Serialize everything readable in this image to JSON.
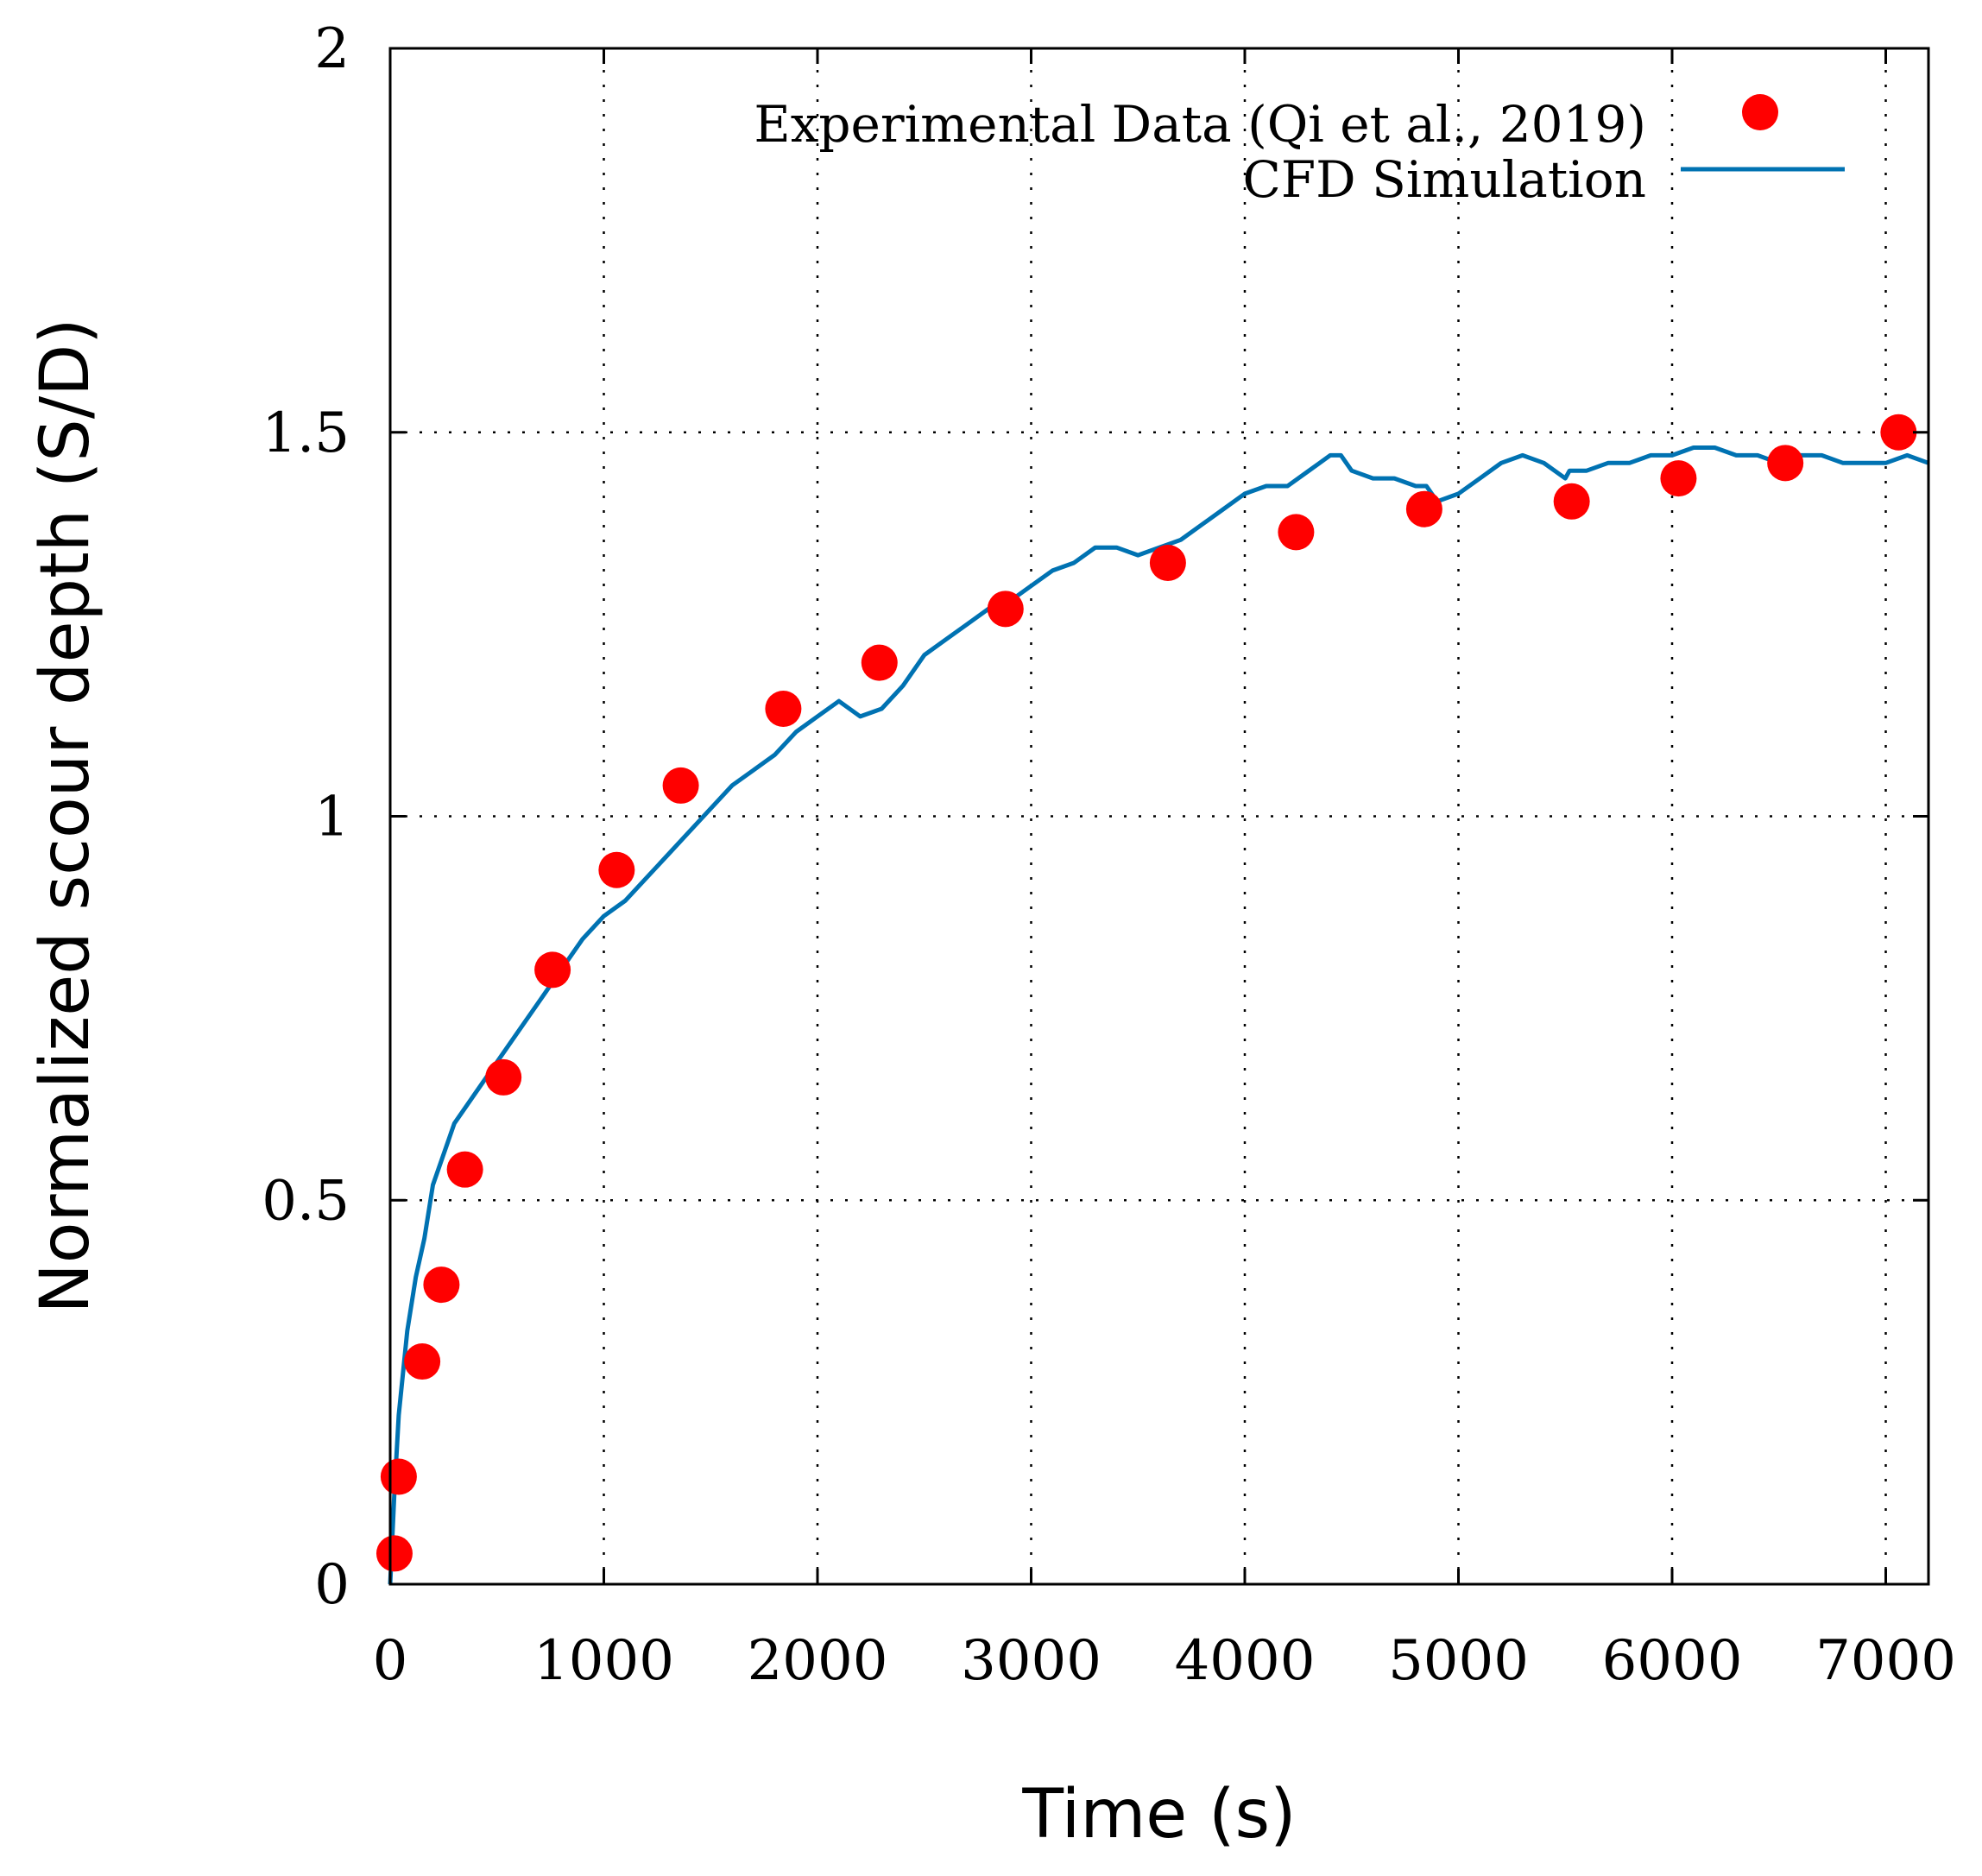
{
  "chart_data": {
    "type": "line",
    "title": "",
    "xlabel": "Time (s)",
    "ylabel": "Normalized scour depth (S/D)",
    "xlim": [
      0,
      7200
    ],
    "ylim": [
      0,
      2
    ],
    "x_ticks": [
      "0",
      "1000",
      "2000",
      "3000",
      "4000",
      "5000",
      "6000",
      "7000"
    ],
    "y_ticks": [
      "0",
      "0.5",
      "1",
      "1.5",
      "2"
    ],
    "x_tick_values": [
      0,
      1000,
      2000,
      3000,
      4000,
      5000,
      6000,
      7000
    ],
    "y_tick_values": [
      0,
      0.5,
      1,
      1.5,
      2
    ],
    "grid": true,
    "legend_position": "top-right",
    "series": [
      {
        "name": "Experimental Data (Qi et al., 2019)",
        "kind": "scatter",
        "color": "#ff0000",
        "x": [
          20,
          40,
          150,
          240,
          350,
          530,
          760,
          1060,
          1360,
          1840,
          2290,
          2880,
          3640,
          4240,
          4840,
          5530,
          6030,
          6530,
          7060
        ],
        "y": [
          0.04,
          0.14,
          0.29,
          0.39,
          0.54,
          0.66,
          0.8,
          0.93,
          1.04,
          1.14,
          1.2,
          1.27,
          1.33,
          1.37,
          1.4,
          1.41,
          1.44,
          1.46,
          1.5
        ]
      },
      {
        "name": "CFD Simulation",
        "kind": "line",
        "color": "#0072b2",
        "x": [
          0,
          20,
          40,
          80,
          120,
          160,
          200,
          250,
          300,
          400,
          500,
          600,
          700,
          800,
          900,
          1000,
          1100,
          1200,
          1300,
          1400,
          1500,
          1600,
          1700,
          1800,
          1900,
          2000,
          2100,
          2200,
          2300,
          2400,
          2500,
          2600,
          2700,
          2800,
          2900,
          3000,
          3100,
          3200,
          3300,
          3400,
          3500,
          3600,
          3700,
          3800,
          3900,
          4000,
          4100,
          4200,
          4300,
          4400,
          4450,
          4500,
          4600,
          4700,
          4800,
          4850,
          4900,
          5000,
          5100,
          5200,
          5300,
          5400,
          5500,
          5520,
          5600,
          5700,
          5800,
          5900,
          6000,
          6100,
          6200,
          6300,
          6400,
          6500,
          6600,
          6700,
          6800,
          6900,
          7000,
          7100,
          7200
        ],
        "y": [
          0.0,
          0.12,
          0.22,
          0.33,
          0.4,
          0.45,
          0.52,
          0.56,
          0.6,
          0.64,
          0.68,
          0.72,
          0.76,
          0.8,
          0.84,
          0.87,
          0.89,
          0.92,
          0.95,
          0.98,
          1.01,
          1.04,
          1.06,
          1.08,
          1.11,
          1.13,
          1.15,
          1.13,
          1.14,
          1.17,
          1.21,
          1.23,
          1.25,
          1.27,
          1.28,
          1.3,
          1.32,
          1.33,
          1.35,
          1.35,
          1.34,
          1.35,
          1.36,
          1.38,
          1.4,
          1.42,
          1.43,
          1.43,
          1.45,
          1.47,
          1.47,
          1.45,
          1.44,
          1.44,
          1.43,
          1.43,
          1.41,
          1.42,
          1.44,
          1.46,
          1.47,
          1.46,
          1.44,
          1.45,
          1.45,
          1.46,
          1.46,
          1.47,
          1.47,
          1.48,
          1.48,
          1.47,
          1.47,
          1.46,
          1.47,
          1.47,
          1.46,
          1.46,
          1.46,
          1.47,
          1.46
        ]
      }
    ]
  }
}
